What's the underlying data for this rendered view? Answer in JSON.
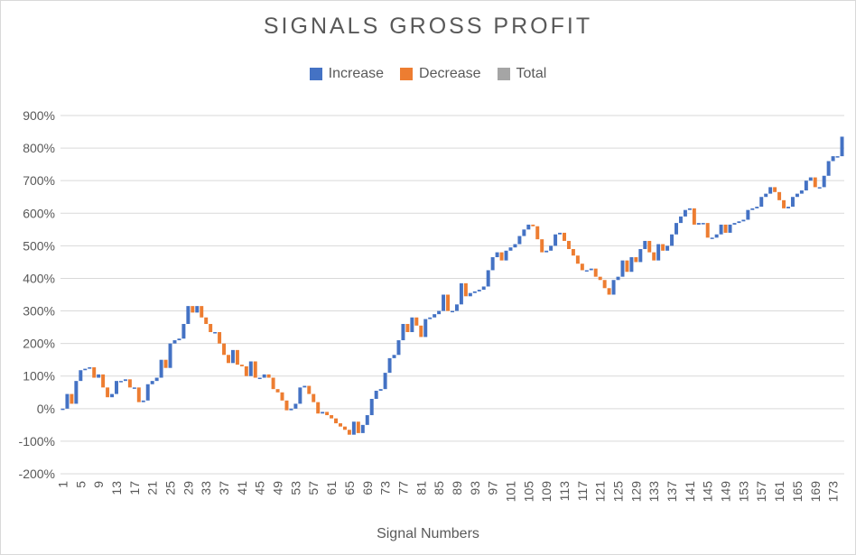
{
  "chart_data": {
    "type": "waterfall",
    "title": "SIGNALS GROSS PROFIT",
    "xlabel": "Signal Numbers",
    "ylabel": "",
    "ylim": [
      -200,
      900
    ],
    "y_ticks": [
      "-200%",
      "-100%",
      "0%",
      "100%",
      "200%",
      "300%",
      "400%",
      "500%",
      "600%",
      "700%",
      "800%",
      "900%"
    ],
    "x_tick_labels": [
      "1",
      "5",
      "9",
      "13",
      "17",
      "21",
      "25",
      "29",
      "33",
      "37",
      "41",
      "45",
      "49",
      "53",
      "57",
      "61",
      "65",
      "69",
      "73",
      "77",
      "81",
      "85",
      "89",
      "93",
      "97",
      "101",
      "105",
      "109",
      "113",
      "117",
      "121",
      "125",
      "129",
      "133",
      "137",
      "141",
      "145",
      "149",
      "153",
      "157",
      "161",
      "165",
      "169",
      "173"
    ],
    "grid": "horizontal",
    "legend_position": "top-center",
    "legend": [
      {
        "name": "Increase",
        "color": "#4472c4"
      },
      {
        "name": "Decrease",
        "color": "#ed7d31"
      },
      {
        "name": "Total",
        "color": "#a5a5a5"
      }
    ],
    "categories_count": 175,
    "running_total_anchors": [
      [
        0,
        0
      ],
      [
        1,
        45
      ],
      [
        2,
        15
      ],
      [
        3,
        85
      ],
      [
        4,
        118
      ],
      [
        6,
        127
      ],
      [
        7,
        95
      ],
      [
        8,
        105
      ],
      [
        9,
        65
      ],
      [
        10,
        35
      ],
      [
        11,
        45
      ],
      [
        12,
        85
      ],
      [
        13,
        85
      ],
      [
        14,
        90
      ],
      [
        15,
        65
      ],
      [
        16,
        65
      ],
      [
        17,
        20
      ],
      [
        18,
        25
      ],
      [
        19,
        75
      ],
      [
        20,
        85
      ],
      [
        21,
        95
      ],
      [
        22,
        150
      ],
      [
        23,
        125
      ],
      [
        24,
        200
      ],
      [
        25,
        210
      ],
      [
        26,
        215
      ],
      [
        27,
        260
      ],
      [
        28,
        315
      ],
      [
        29,
        295
      ],
      [
        30,
        315
      ],
      [
        31,
        280
      ],
      [
        32,
        260
      ],
      [
        33,
        235
      ],
      [
        34,
        235
      ],
      [
        35,
        200
      ],
      [
        36,
        165
      ],
      [
        37,
        140
      ],
      [
        38,
        180
      ],
      [
        39,
        135
      ],
      [
        40,
        130
      ],
      [
        41,
        100
      ],
      [
        42,
        145
      ],
      [
        43,
        95
      ],
      [
        44,
        95
      ],
      [
        45,
        105
      ],
      [
        46,
        95
      ],
      [
        47,
        60
      ],
      [
        48,
        50
      ],
      [
        49,
        25
      ],
      [
        50,
        -5
      ],
      [
        51,
        0
      ],
      [
        52,
        15
      ],
      [
        53,
        65
      ],
      [
        54,
        70
      ],
      [
        55,
        45
      ],
      [
        56,
        20
      ],
      [
        57,
        -15
      ],
      [
        58,
        -10
      ],
      [
        59,
        -20
      ],
      [
        60,
        -30
      ],
      [
        61,
        -45
      ],
      [
        62,
        -55
      ],
      [
        63,
        -65
      ],
      [
        64,
        -80
      ],
      [
        65,
        -40
      ],
      [
        66,
        -75
      ],
      [
        67,
        -50
      ],
      [
        68,
        -20
      ],
      [
        69,
        30
      ],
      [
        70,
        55
      ],
      [
        71,
        60
      ],
      [
        72,
        110
      ],
      [
        73,
        155
      ],
      [
        74,
        165
      ],
      [
        75,
        210
      ],
      [
        76,
        260
      ],
      [
        77,
        235
      ],
      [
        78,
        280
      ],
      [
        79,
        255
      ],
      [
        80,
        220
      ],
      [
        81,
        275
      ],
      [
        82,
        280
      ],
      [
        83,
        290
      ],
      [
        84,
        300
      ],
      [
        85,
        350
      ],
      [
        86,
        300
      ],
      [
        87,
        300
      ],
      [
        88,
        320
      ],
      [
        89,
        385
      ],
      [
        90,
        345
      ],
      [
        91,
        355
      ],
      [
        92,
        360
      ],
      [
        93,
        365
      ],
      [
        94,
        375
      ],
      [
        95,
        425
      ],
      [
        96,
        465
      ],
      [
        97,
        480
      ],
      [
        98,
        455
      ],
      [
        99,
        485
      ],
      [
        100,
        495
      ],
      [
        101,
        505
      ],
      [
        102,
        530
      ],
      [
        103,
        550
      ],
      [
        104,
        565
      ],
      [
        105,
        560
      ],
      [
        106,
        520
      ],
      [
        107,
        480
      ],
      [
        108,
        485
      ],
      [
        109,
        500
      ],
      [
        110,
        535
      ],
      [
        111,
        540
      ],
      [
        112,
        515
      ],
      [
        113,
        490
      ],
      [
        114,
        470
      ],
      [
        115,
        445
      ],
      [
        116,
        425
      ],
      [
        117,
        425
      ],
      [
        118,
        430
      ],
      [
        119,
        405
      ],
      [
        120,
        395
      ],
      [
        121,
        370
      ],
      [
        122,
        350
      ],
      [
        123,
        395
      ],
      [
        124,
        405
      ],
      [
        125,
        455
      ],
      [
        126,
        420
      ],
      [
        127,
        465
      ],
      [
        128,
        450
      ],
      [
        129,
        490
      ],
      [
        130,
        515
      ],
      [
        131,
        480
      ],
      [
        132,
        455
      ],
      [
        133,
        505
      ],
      [
        134,
        485
      ],
      [
        135,
        500
      ],
      [
        136,
        535
      ],
      [
        137,
        570
      ],
      [
        138,
        590
      ],
      [
        139,
        610
      ],
      [
        140,
        615
      ],
      [
        141,
        565
      ],
      [
        142,
        570
      ],
      [
        143,
        570
      ],
      [
        144,
        525
      ],
      [
        145,
        525
      ],
      [
        146,
        535
      ],
      [
        147,
        565
      ],
      [
        148,
        540
      ],
      [
        149,
        565
      ],
      [
        150,
        570
      ],
      [
        151,
        575
      ],
      [
        152,
        580
      ],
      [
        153,
        610
      ],
      [
        154,
        615
      ],
      [
        155,
        620
      ],
      [
        156,
        650
      ],
      [
        157,
        660
      ],
      [
        158,
        680
      ],
      [
        159,
        665
      ],
      [
        160,
        640
      ],
      [
        161,
        615
      ],
      [
        162,
        620
      ],
      [
        163,
        650
      ],
      [
        164,
        660
      ],
      [
        165,
        670
      ],
      [
        166,
        700
      ],
      [
        167,
        710
      ],
      [
        168,
        680
      ],
      [
        169,
        680
      ],
      [
        170,
        715
      ],
      [
        171,
        760
      ],
      [
        172,
        775
      ],
      [
        173,
        775
      ],
      [
        174,
        835
      ]
    ]
  }
}
